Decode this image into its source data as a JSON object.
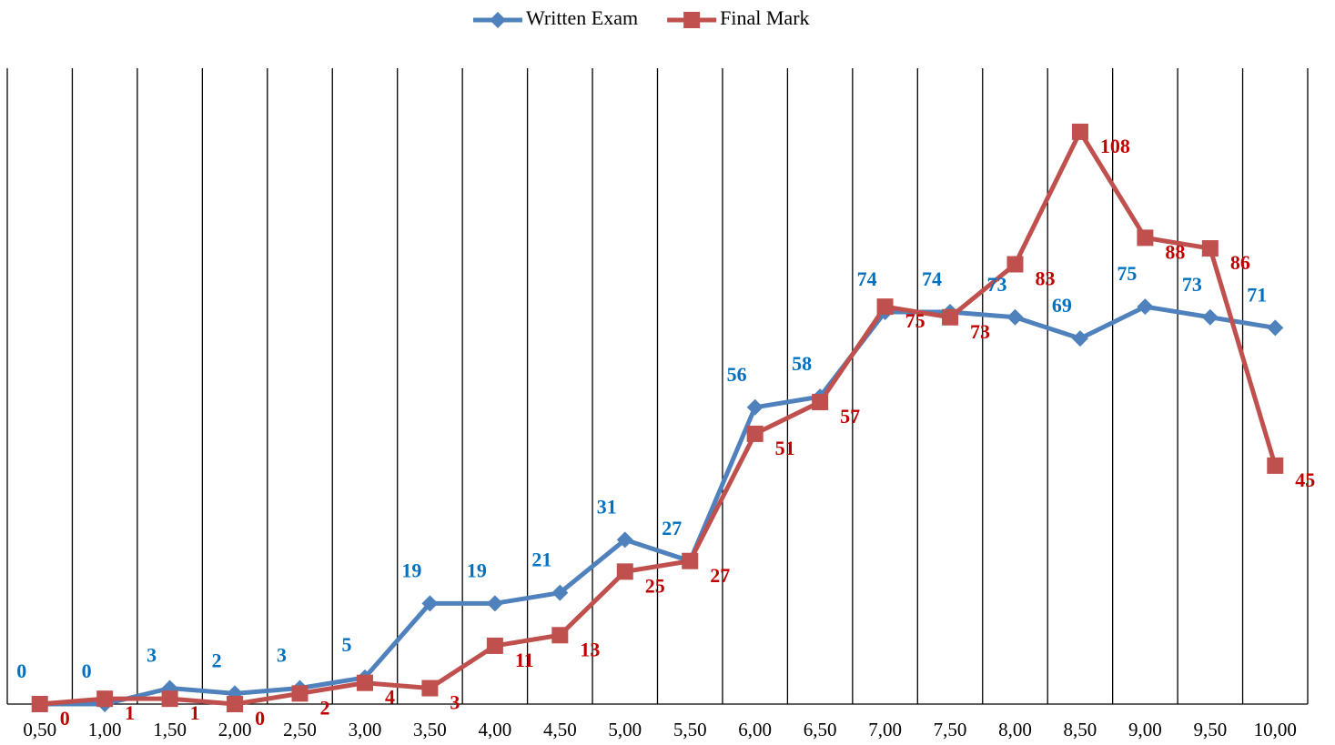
{
  "chart_data": {
    "type": "line",
    "categories": [
      "0,50",
      "1,00",
      "1,50",
      "2,00",
      "2,50",
      "3,00",
      "3,50",
      "4,00",
      "4,50",
      "5,00",
      "5,50",
      "6,00",
      "6,50",
      "7,00",
      "7,50",
      "8,00",
      "8,50",
      "9,00",
      "9,50",
      "10,00"
    ],
    "series": [
      {
        "name": "Written Exam",
        "color": "#4f81bd",
        "label_color": "#0070c0",
        "marker": "diamond",
        "values": [
          0,
          0,
          3,
          2,
          3,
          5,
          19,
          19,
          21,
          31,
          27,
          56,
          58,
          74,
          74,
          73,
          69,
          75,
          73,
          71
        ]
      },
      {
        "name": "Final Mark",
        "color": "#c0504d",
        "label_color": "#c00000",
        "marker": "square",
        "values": [
          0,
          1,
          1,
          0,
          2,
          4,
          3,
          11,
          13,
          25,
          27,
          51,
          57,
          75,
          73,
          83,
          108,
          88,
          86,
          45
        ]
      }
    ],
    "ylim": [
      0,
      120
    ],
    "legend": "top"
  }
}
